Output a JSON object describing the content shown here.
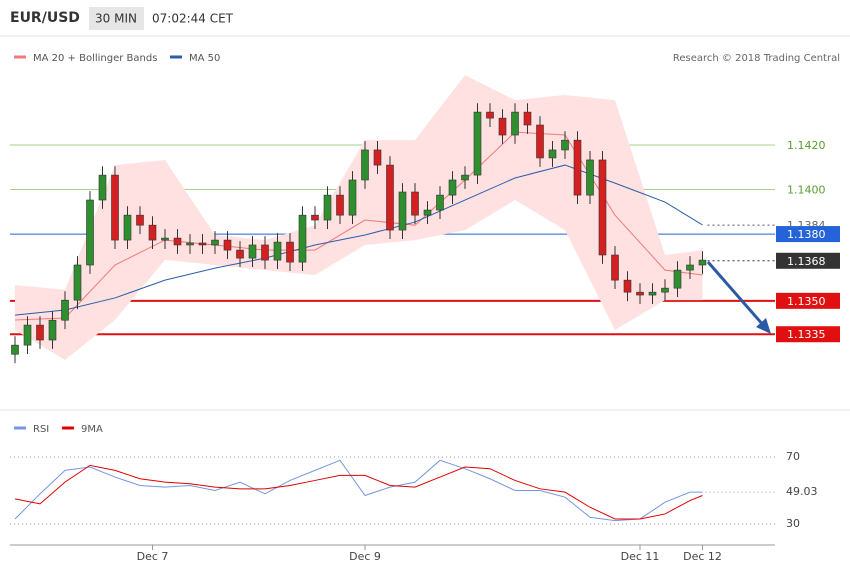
{
  "header": {
    "symbol": "EUR/USD",
    "interval": "30 MIN",
    "time": "07:02:44 CET"
  },
  "source": "Research © 2018 Trading Central",
  "chart_data": [
    {
      "type": "candlestick",
      "categories": [
        null,
        null,
        null,
        null,
        null,
        null,
        null,
        null,
        null,
        null,
        null,
        "Dec 7",
        null,
        null,
        null,
        null,
        null,
        null,
        null,
        null,
        null,
        null,
        null,
        null,
        null,
        null,
        null,
        null,
        "Dec 9",
        null,
        null,
        null,
        null,
        null,
        null,
        null,
        null,
        null,
        null,
        null,
        null,
        null,
        null,
        null,
        null,
        null,
        null,
        null,
        null,
        null,
        "Dec 11",
        null,
        null,
        null,
        null,
        "Dec 12"
      ],
      "open": [
        1.1326,
        1.13301,
        1.13391,
        1.13324,
        1.13413,
        1.13503,
        1.13661,
        1.13953,
        1.14065,
        1.13773,
        1.13885,
        1.1384,
        1.13773,
        1.13782,
        1.13751,
        1.1376,
        1.13751,
        1.13773,
        1.13728,
        1.13692,
        1.13751,
        1.13683,
        1.13764,
        1.13674,
        1.13885,
        1.13863,
        1.13975,
        1.13885,
        1.14043,
        1.14178,
        1.1411,
        1.13818,
        1.13989,
        1.13885,
        1.13908,
        1.13975,
        1.14043,
        1.14065,
        1.14348,
        1.14321,
        1.14245,
        1.14348,
        1.1429,
        1.14142,
        1.14178,
        1.14222,
        1.13975,
        1.14133,
        1.13706,
        1.13593,
        1.13539,
        1.13526,
        1.13539,
        1.13557,
        1.13638,
        1.13661
      ],
      "high": [
        1.13341,
        1.13431,
        1.13431,
        1.13453,
        1.13543,
        1.13701,
        1.13993,
        1.14105,
        1.14105,
        1.13925,
        1.13925,
        1.1388,
        1.13822,
        1.13822,
        1.138,
        1.138,
        1.13813,
        1.13813,
        1.13768,
        1.13791,
        1.13791,
        1.13804,
        1.13804,
        1.13925,
        1.13925,
        1.14015,
        1.14015,
        1.14083,
        1.14218,
        1.14218,
        1.1415,
        1.14029,
        1.14029,
        1.13948,
        1.14015,
        1.14083,
        1.14105,
        1.14388,
        1.14388,
        1.14361,
        1.14388,
        1.14388,
        1.1433,
        1.14218,
        1.14262,
        1.14262,
        1.14173,
        1.14173,
        1.13746,
        1.13633,
        1.13579,
        1.13579,
        1.13597,
        1.13678,
        1.13701,
        1.13723
      ],
      "low": [
        1.1322,
        1.13261,
        1.13284,
        1.13284,
        1.13373,
        1.13463,
        1.13621,
        1.13913,
        1.13733,
        1.13733,
        1.138,
        1.13733,
        1.13733,
        1.13711,
        1.13711,
        1.13711,
        1.13711,
        1.13688,
        1.13652,
        1.13652,
        1.13643,
        1.13643,
        1.13634,
        1.13634,
        1.13823,
        1.13823,
        1.13845,
        1.13845,
        1.14003,
        1.1407,
        1.13778,
        1.13778,
        1.13845,
        1.13845,
        1.13868,
        1.13935,
        1.14003,
        1.14025,
        1.14281,
        1.14205,
        1.14205,
        1.1425,
        1.14102,
        1.14102,
        1.14138,
        1.13935,
        1.13935,
        1.13666,
        1.13553,
        1.13499,
        1.13486,
        1.13486,
        1.13499,
        1.13517,
        1.13598,
        1.13621
      ],
      "close": [
        1.13301,
        1.13391,
        1.13324,
        1.13413,
        1.13503,
        1.13661,
        1.13953,
        1.14065,
        1.13773,
        1.13885,
        1.1384,
        1.13773,
        1.13782,
        1.13751,
        1.1376,
        1.13751,
        1.13773,
        1.13728,
        1.13692,
        1.13751,
        1.13683,
        1.13764,
        1.13674,
        1.13885,
        1.13863,
        1.13975,
        1.13885,
        1.14043,
        1.14178,
        1.1411,
        1.13818,
        1.13989,
        1.13885,
        1.13908,
        1.13975,
        1.14043,
        1.14065,
        1.14348,
        1.14321,
        1.14245,
        1.14348,
        1.1429,
        1.14142,
        1.14178,
        1.14222,
        1.13975,
        1.14133,
        1.13706,
        1.13593,
        1.13539,
        1.13526,
        1.13539,
        1.13557,
        1.13638,
        1.13661,
        1.13683
      ],
      "up_color": "#2f8f2f",
      "down_color": "#d42020",
      "ylim": [
        1.13032,
        1.14672
      ],
      "series": [
        {
          "name": "MA 20 + Bollinger Bands",
          "color": "#f07a7a",
          "band_color": "#ffe1e1",
          "x": [
            0,
            4,
            8,
            12,
            16,
            20,
            24,
            28,
            32,
            36,
            40,
            44,
            48,
            52,
            55
          ],
          "values": [
            1.13414,
            1.13423,
            1.13661,
            1.13773,
            1.13751,
            1.13728,
            1.13728,
            1.13863,
            1.1384,
            1.14043,
            1.14258,
            1.14245,
            1.13885,
            1.13638,
            1.13616
          ],
          "upper": [
            1.13571,
            1.13549,
            1.1411,
            1.14133,
            1.13796,
            1.13773,
            1.1384,
            1.14222,
            1.14222,
            1.14514,
            1.14402,
            1.14425,
            1.14402,
            1.13706,
            1.13728
          ],
          "lower": [
            1.13369,
            1.13235,
            1.13414,
            1.13684,
            1.13661,
            1.13638,
            1.13616,
            1.13751,
            1.13773,
            1.13818,
            1.13953,
            1.13818,
            1.13369,
            1.13503,
            1.13503
          ]
        },
        {
          "name": "MA 50",
          "color": "#2b5ea8",
          "x": [
            0,
            4,
            8,
            12,
            16,
            20,
            24,
            28,
            32,
            36,
            40,
            44,
            48,
            52,
            55
          ],
          "values": [
            1.13436,
            1.13459,
            1.13513,
            1.13593,
            1.13647,
            1.13692,
            1.13751,
            1.13796,
            1.13854,
            1.13953,
            1.14052,
            1.1411,
            1.14029,
            1.13944,
            1.13841
          ]
        }
      ],
      "levels": [
        {
          "value": 1.142,
          "label": "1.1420",
          "color": "#a6d38a",
          "text_color": "#5a9e2f",
          "style": "solid",
          "label_style": "text"
        },
        {
          "value": 1.14,
          "label": "1.1400",
          "color": "#a6d38a",
          "text_color": "#5a9e2f",
          "style": "solid",
          "label_style": "text"
        },
        {
          "value": 1.1384,
          "label": "1.1384",
          "color": "#555555",
          "text_color": "#666666",
          "style": "dotted",
          "label_style": "text"
        },
        {
          "value": 1.138,
          "label": "1.1380",
          "color": "#2563d9",
          "text_color": "#ffffff",
          "style": "solid",
          "label_style": "filled"
        },
        {
          "value": 1.1368,
          "label": "1.1368",
          "color": "#333333",
          "text_color": "#ffffff",
          "style": "dotted",
          "label_style": "filled"
        },
        {
          "value": 1.135,
          "label": "1.1350",
          "color": "#e01010",
          "text_color": "#ffffff",
          "style": "solid",
          "label_style": "filled"
        },
        {
          "value": 1.1335,
          "label": "1.1335",
          "color": "#e01010",
          "text_color": "#ffffff",
          "style": "solid",
          "label_style": "filled"
        }
      ]
    },
    {
      "type": "line",
      "series": [
        {
          "name": "RSI",
          "color": "#7596e0",
          "x": [
            0,
            2,
            4,
            6,
            8,
            10,
            12,
            14,
            16,
            18,
            20,
            22,
            24,
            26,
            28,
            30,
            32,
            34,
            36,
            38,
            40,
            42,
            44,
            46,
            48,
            50,
            52,
            54,
            55
          ],
          "values": [
            33,
            48,
            62,
            64,
            58,
            53,
            52,
            53,
            50,
            55,
            48,
            56,
            62,
            68,
            47,
            52,
            55,
            68,
            63,
            57,
            50,
            50,
            46,
            34,
            32,
            33,
            43,
            49,
            49.03
          ]
        },
        {
          "name": "9MA",
          "color": "#e00000",
          "x": [
            0,
            2,
            4,
            6,
            8,
            10,
            12,
            14,
            16,
            18,
            20,
            22,
            24,
            26,
            28,
            30,
            32,
            34,
            36,
            38,
            40,
            42,
            44,
            46,
            48,
            50,
            52,
            54,
            55
          ],
          "values": [
            45,
            42,
            55,
            65,
            62,
            57,
            55,
            54,
            52,
            51,
            51,
            53,
            56,
            59,
            59,
            53,
            52,
            58,
            64,
            63,
            56,
            51,
            49,
            40,
            33,
            33,
            36,
            44,
            47
          ]
        }
      ],
      "ylim": [
        20,
        95
      ],
      "yticks": [
        30,
        70
      ],
      "grid": true
    }
  ]
}
